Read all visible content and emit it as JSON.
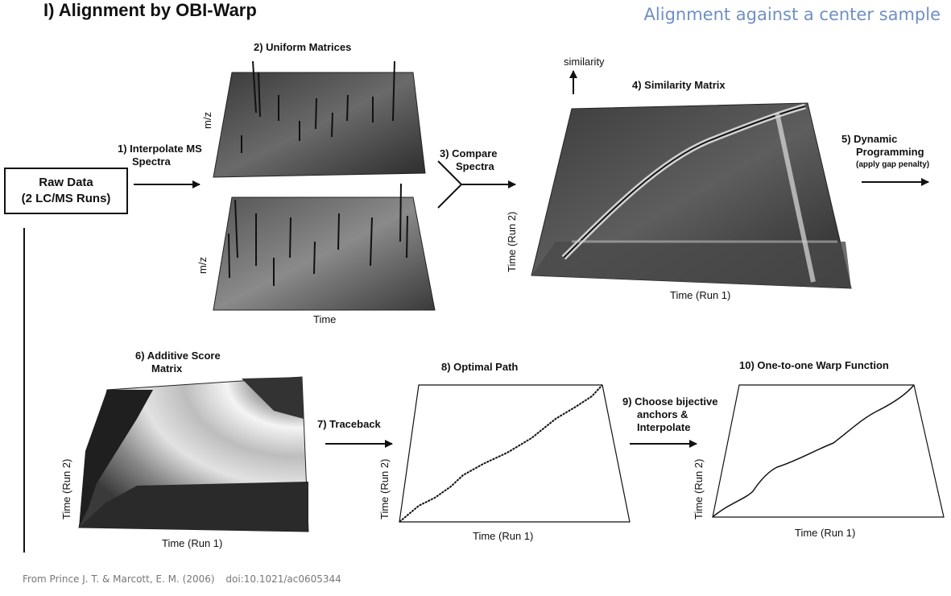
{
  "header": {
    "title": "I) Alignment by OBI-Warp",
    "subtitle": "Alignment against a center sample"
  },
  "raw_data": {
    "line1": "Raw Data",
    "line2": "(2 LC/MS Runs)"
  },
  "steps": {
    "s1": {
      "line1": "1)  Interpolate MS",
      "line2": "Spectra"
    },
    "s2": "2)  Uniform Matrices",
    "s3": {
      "line1": "3)  Compare",
      "line2": "Spectra"
    },
    "s4": "4)  Similarity Matrix",
    "s5": {
      "line1": "5)  Dynamic",
      "line2": "Programming",
      "line3": "(apply gap penalty)"
    },
    "s6": {
      "line1": "6)  Additive Score",
      "line2": "Matrix"
    },
    "s7": "7)  Traceback",
    "s8": "8)  Optimal Path",
    "s9": {
      "line1": "9)  Choose bijective",
      "line2": "anchors &",
      "line3": "Interpolate"
    },
    "s10": "10)  One-to-one Warp Function"
  },
  "axes": {
    "mz": "m/z",
    "time": "Time",
    "similarity": "similarity",
    "time_run1": "Time (Run 1)",
    "time_run2": "Time (Run 2)"
  },
  "footer": {
    "citation": "From Prince J. T. & Marcott, E. M. (2006)",
    "doi": "doi:10.1021/ac0605344"
  },
  "colors": {
    "subtitle": "#6f8fc4",
    "footer": "#777777",
    "ink": "#111111"
  }
}
